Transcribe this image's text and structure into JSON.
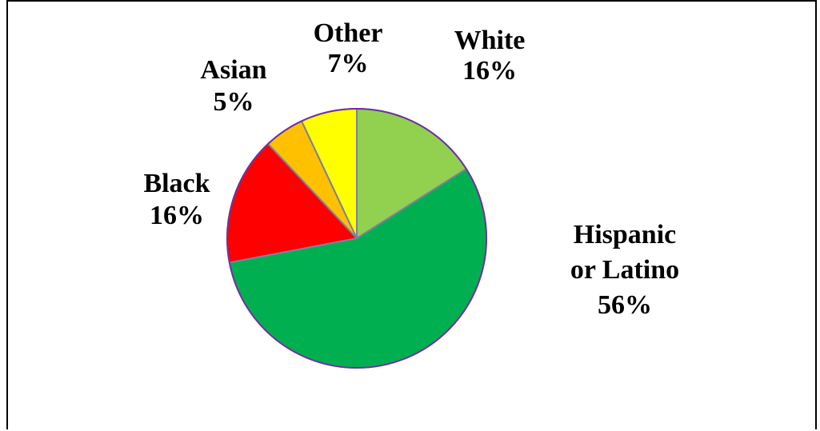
{
  "chart_data": {
    "type": "pie",
    "title": "",
    "legend": "none",
    "categories": [
      "White",
      "Hispanic or Latino",
      "Black",
      "Asian",
      "Other"
    ],
    "values": [
      16,
      56,
      16,
      5,
      7
    ],
    "slices": [
      {
        "name": "White",
        "value": 16,
        "color": "#92D050",
        "label_lines": [
          "White",
          "16%"
        ]
      },
      {
        "name": "Hispanic or Latino",
        "value": 56,
        "color": "#00B050",
        "label_lines": [
          "Hispanic",
          "or Latino",
          "56%"
        ]
      },
      {
        "name": "Black",
        "value": 16,
        "color": "#FF0000",
        "label_lines": [
          "Black",
          "16%"
        ]
      },
      {
        "name": "Asian",
        "value": 5,
        "color": "#FFC000",
        "label_lines": [
          "Asian",
          "5%"
        ]
      },
      {
        "name": "Other",
        "value": 7,
        "color": "#FFFF00",
        "label_lines": [
          "Other",
          "7%"
        ]
      }
    ],
    "slice_border_color": "#7F7F9F",
    "outer_border_color": "#7030A0"
  }
}
